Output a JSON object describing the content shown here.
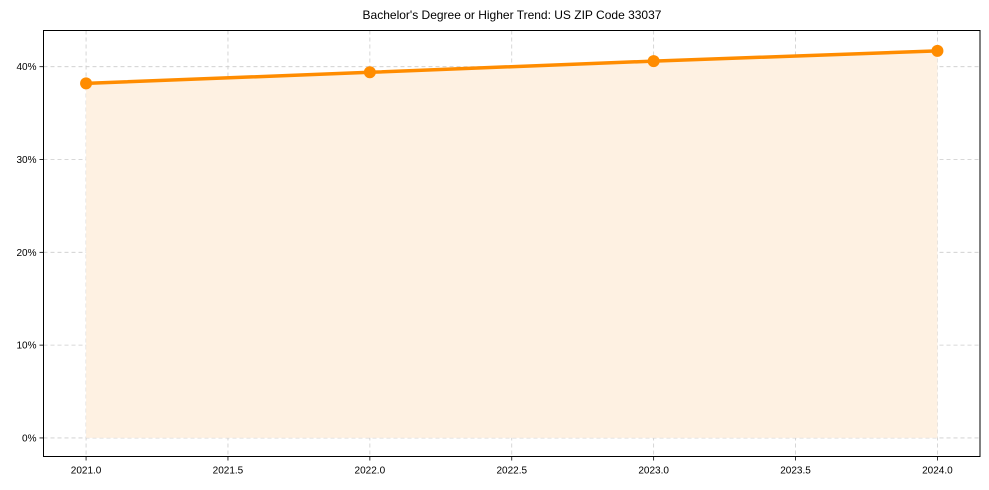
{
  "chart_data": {
    "type": "line",
    "title": "Bachelor's Degree or Higher Trend: US ZIP Code 33037",
    "xlabel": "",
    "ylabel": "",
    "x": [
      2021,
      2022,
      2023,
      2024
    ],
    "series": [
      {
        "name": "Bachelor's Degree or Higher",
        "values": [
          38.2,
          39.4,
          40.6,
          41.7
        ],
        "unit": "%",
        "color": "#FF8C00",
        "fill_to_zero": true,
        "fill_color": "#FEF1E2",
        "markers": true
      }
    ],
    "x_ticks": [
      "2021.0",
      "2021.5",
      "2022.0",
      "2022.5",
      "2023.0",
      "2023.5",
      "2024.0"
    ],
    "y_ticks": [
      "0%",
      "10%",
      "20%",
      "30%",
      "40%"
    ],
    "xlim": [
      2020.85,
      2024.15
    ],
    "ylim": [
      -2.0,
      43.9
    ],
    "grid": true,
    "grid_style": "dashed",
    "legend": null
  },
  "colors": {
    "line": "#FF8C00",
    "fill": "#FEF1E2",
    "grid": "#CCCCCC",
    "axis": "#000000"
  }
}
